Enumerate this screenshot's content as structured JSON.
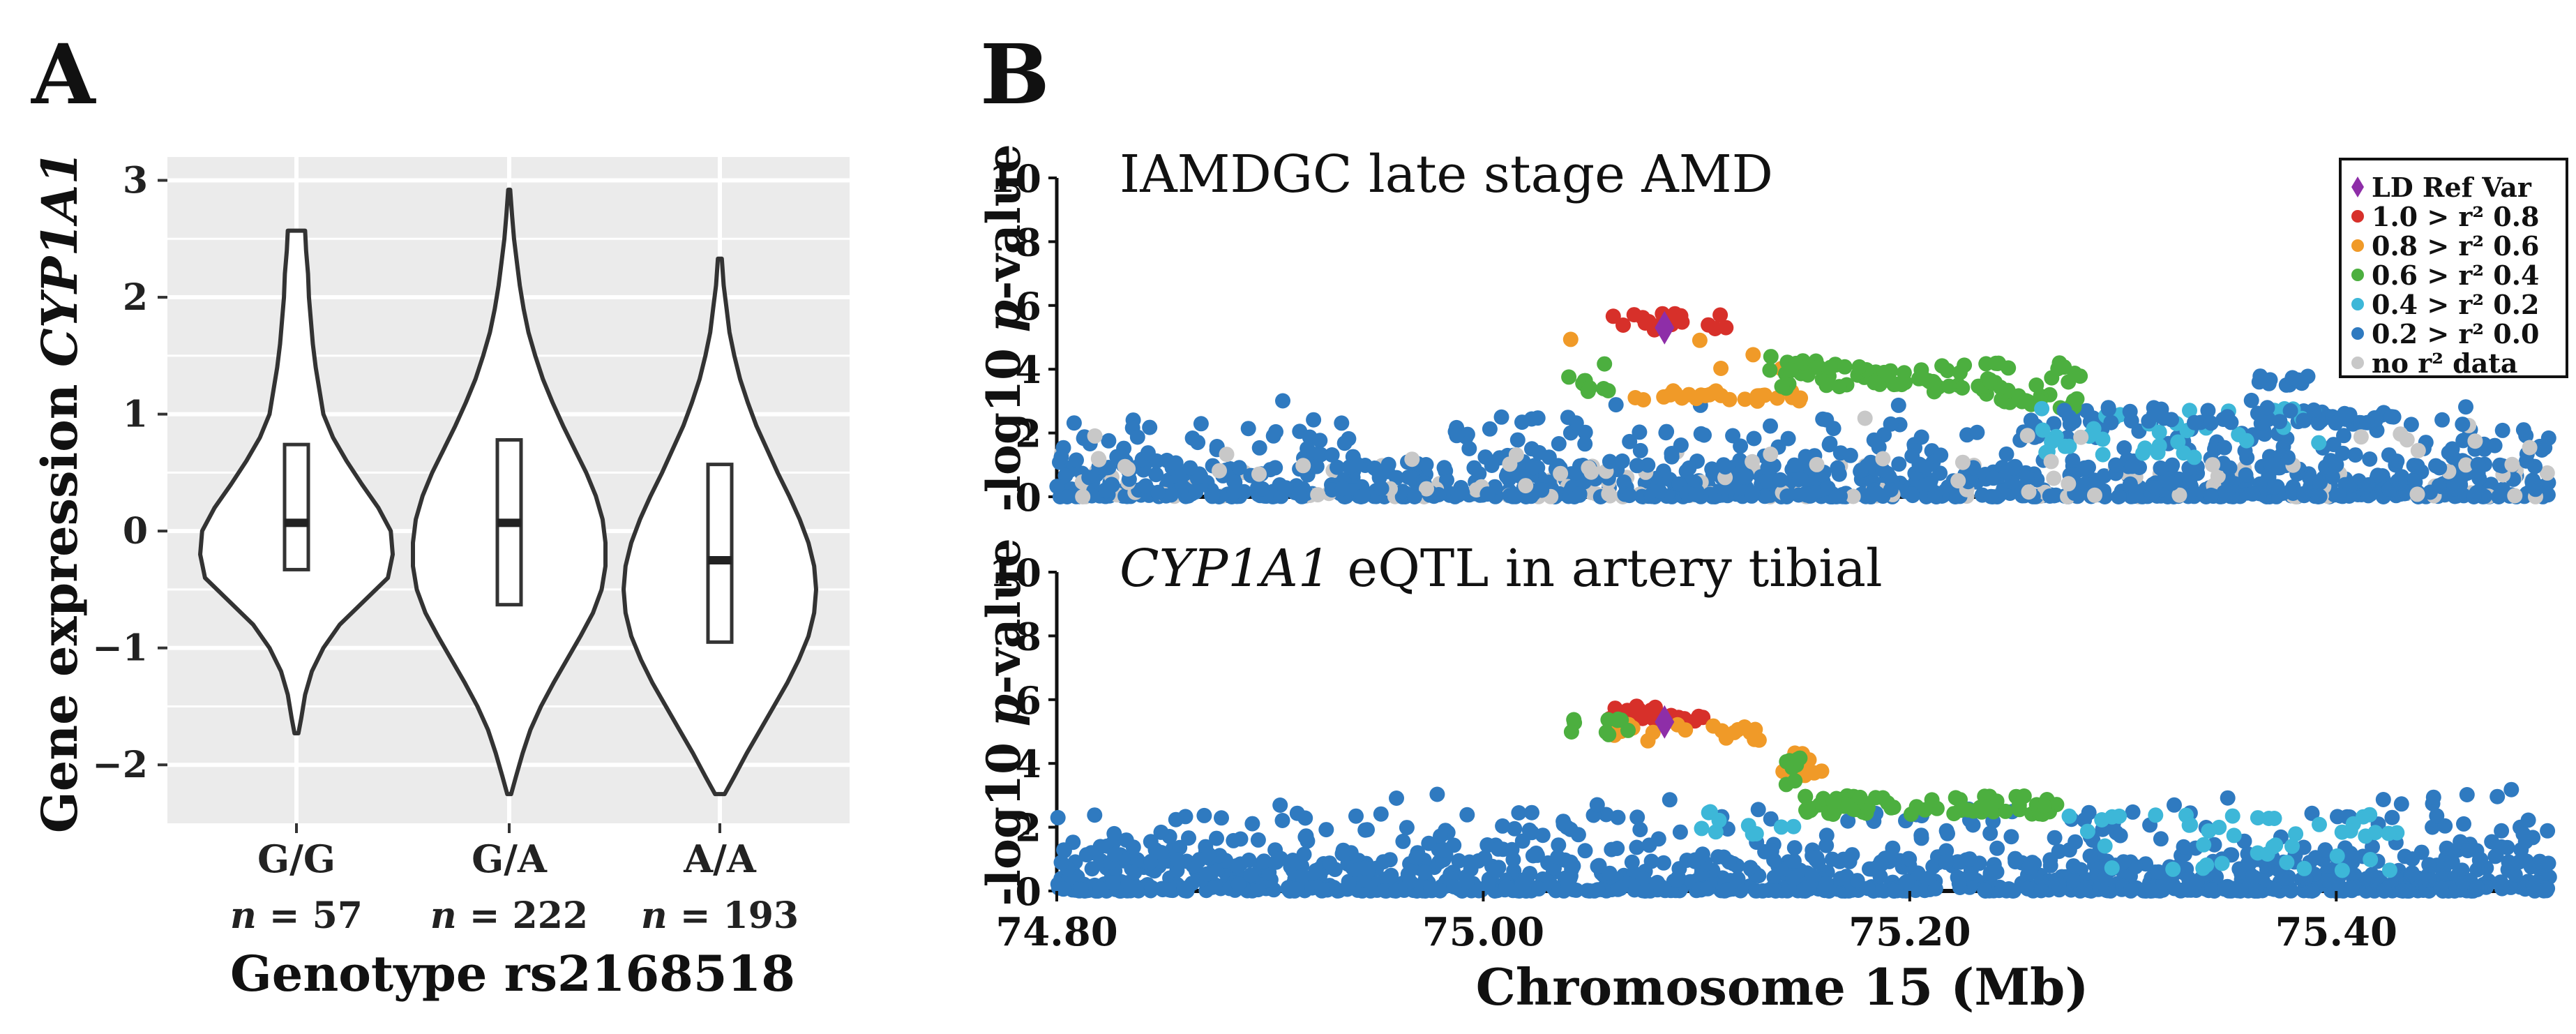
{
  "figure": {
    "panel_a_letter": "A",
    "panel_b_letter": "B"
  },
  "chart_data": [
    {
      "type": "violin",
      "panel": "A",
      "ylabel_prefix": "Gene expression ",
      "ylabel_gene": "CYP1A1",
      "xlabel": "Genotype rs2168518",
      "ylim": [
        -2.5,
        3.2
      ],
      "yticks": [
        -2,
        -1,
        0,
        1,
        2,
        3
      ],
      "ytick_labels": [
        "−2",
        "−1",
        "0",
        "1",
        "2",
        "3"
      ],
      "grid": true,
      "n_prefix": "n",
      "groups": [
        {
          "label": "G/G",
          "n_text": " = 57",
          "min": -1.73,
          "max": 2.57,
          "q1": -0.33,
          "median": 0.07,
          "q3": 0.74,
          "density": [
            [
              -1.73,
              0.02
            ],
            [
              -1.6,
              0.05
            ],
            [
              -1.4,
              0.09
            ],
            [
              -1.2,
              0.16
            ],
            [
              -1.0,
              0.28
            ],
            [
              -0.8,
              0.45
            ],
            [
              -0.6,
              0.7
            ],
            [
              -0.4,
              0.95
            ],
            [
              -0.2,
              1.0
            ],
            [
              0.0,
              0.98
            ],
            [
              0.2,
              0.85
            ],
            [
              0.4,
              0.68
            ],
            [
              0.6,
              0.52
            ],
            [
              0.8,
              0.38
            ],
            [
              1.0,
              0.28
            ],
            [
              1.2,
              0.24
            ],
            [
              1.4,
              0.2
            ],
            [
              1.6,
              0.17
            ],
            [
              1.8,
              0.15
            ],
            [
              2.0,
              0.13
            ],
            [
              2.2,
              0.12
            ],
            [
              2.4,
              0.1
            ],
            [
              2.57,
              0.09
            ]
          ]
        },
        {
          "label": "G/A",
          "n_text": " = 222",
          "min": -2.25,
          "max": 2.92,
          "q1": -0.63,
          "median": 0.07,
          "q3": 0.78,
          "density": [
            [
              -2.25,
              0.02
            ],
            [
              -2.1,
              0.07
            ],
            [
              -1.9,
              0.14
            ],
            [
              -1.7,
              0.22
            ],
            [
              -1.5,
              0.33
            ],
            [
              -1.3,
              0.46
            ],
            [
              -1.1,
              0.6
            ],
            [
              -0.9,
              0.74
            ],
            [
              -0.7,
              0.87
            ],
            [
              -0.5,
              0.96
            ],
            [
              -0.3,
              1.0
            ],
            [
              -0.1,
              1.0
            ],
            [
              0.1,
              0.97
            ],
            [
              0.3,
              0.9
            ],
            [
              0.5,
              0.8
            ],
            [
              0.7,
              0.68
            ],
            [
              0.9,
              0.56
            ],
            [
              1.1,
              0.45
            ],
            [
              1.3,
              0.35
            ],
            [
              1.5,
              0.27
            ],
            [
              1.7,
              0.2
            ],
            [
              1.9,
              0.15
            ],
            [
              2.1,
              0.11
            ],
            [
              2.3,
              0.08
            ],
            [
              2.5,
              0.05
            ],
            [
              2.7,
              0.03
            ],
            [
              2.92,
              0.01
            ]
          ]
        },
        {
          "label": "A/A",
          "n_text": " = 193",
          "min": -2.25,
          "max": 2.33,
          "q1": -0.95,
          "median": -0.25,
          "q3": 0.57,
          "density": [
            [
              -2.25,
              0.05
            ],
            [
              -2.1,
              0.15
            ],
            [
              -1.9,
              0.28
            ],
            [
              -1.7,
              0.42
            ],
            [
              -1.5,
              0.56
            ],
            [
              -1.3,
              0.7
            ],
            [
              -1.1,
              0.82
            ],
            [
              -0.9,
              0.92
            ],
            [
              -0.7,
              0.98
            ],
            [
              -0.5,
              1.0
            ],
            [
              -0.3,
              0.98
            ],
            [
              -0.1,
              0.92
            ],
            [
              0.1,
              0.83
            ],
            [
              0.3,
              0.72
            ],
            [
              0.5,
              0.6
            ],
            [
              0.7,
              0.49
            ],
            [
              0.9,
              0.38
            ],
            [
              1.1,
              0.29
            ],
            [
              1.3,
              0.21
            ],
            [
              1.5,
              0.15
            ],
            [
              1.7,
              0.1
            ],
            [
              1.9,
              0.07
            ],
            [
              2.1,
              0.04
            ],
            [
              2.33,
              0.02
            ]
          ]
        }
      ]
    },
    {
      "type": "scatter",
      "panel": "B",
      "subplots": [
        {
          "title": "IAMDGC late stage AMD",
          "title_gene": "",
          "ylabel_prefix": "-log10 ",
          "ylabel_p": "p",
          "ylabel_suffix": "-value",
          "ylim": [
            0,
            10
          ],
          "yticks": [
            0,
            2,
            4,
            6,
            8,
            10
          ],
          "lead_snp": {
            "x": 75.085,
            "y": 5.3
          }
        },
        {
          "title": " eQTL in artery tibial",
          "title_gene": "CYP1A1",
          "ylabel_prefix": "-log10 ",
          "ylabel_p": "p",
          "ylabel_suffix": "-value",
          "ylim": [
            0,
            10
          ],
          "yticks": [
            0,
            2,
            4,
            6,
            8,
            10
          ],
          "lead_snp": {
            "x": 75.085,
            "y": 5.3
          }
        }
      ],
      "xlabel": "Chromosome 15 (Mb)",
      "xlim": [
        74.8,
        75.5
      ],
      "xticks": [
        74.8,
        75.0,
        75.2,
        75.4
      ],
      "xtick_labels": [
        "74.80",
        "75.00",
        "75.20",
        "75.40"
      ],
      "legend": {
        "position": "top-right",
        "entries": [
          {
            "label": "LD Ref Var",
            "color": "#8e2ea8",
            "marker": "diamond"
          },
          {
            "label": "1.0 > r² 0.8",
            "color": "#d7302a",
            "marker": "circle"
          },
          {
            "label": "0.8 > r² 0.6",
            "color": "#f09a28",
            "marker": "circle"
          },
          {
            "label": "0.6 > r² 0.4",
            "color": "#4caf3f",
            "marker": "circle"
          },
          {
            "label": "0.4 > r² 0.2",
            "color": "#3db7d8",
            "marker": "circle"
          },
          {
            "label": "0.2 > r² 0.0",
            "color": "#2f7ac0",
            "marker": "circle"
          },
          {
            "label": "no r² data",
            "color": "#c8c8c8",
            "marker": "circle"
          }
        ]
      }
    }
  ]
}
